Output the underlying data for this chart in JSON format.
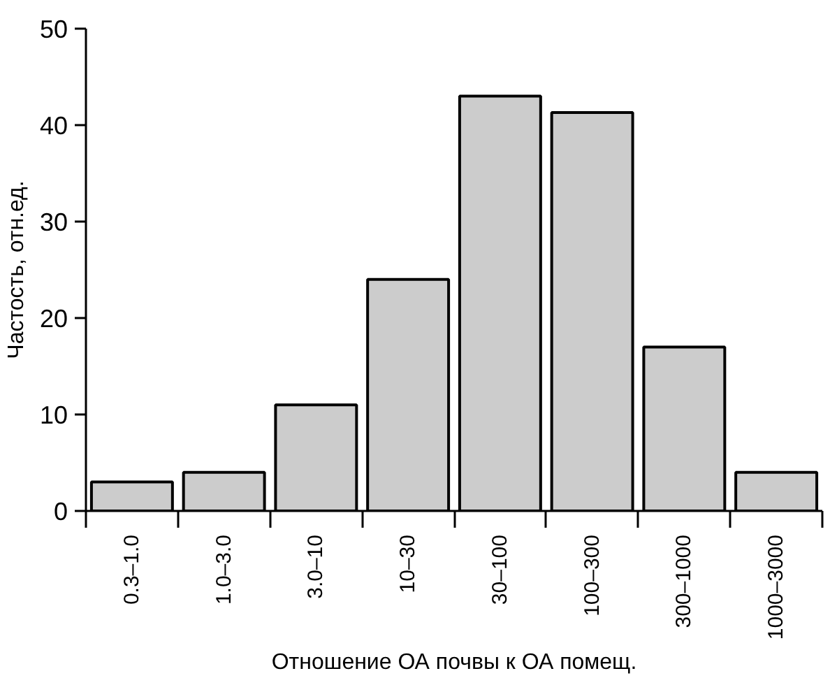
{
  "chart_data": {
    "type": "bar",
    "xlabel": "Отношение ОА почвы к ОА помещ.",
    "ylabel": "Частость, отн.ед.",
    "categories": [
      "0.3–1.0",
      "1.0–3.0",
      "3.0–10",
      "10–30",
      "30–100",
      "100–300",
      "300–1000",
      "1000–3000"
    ],
    "values": [
      3,
      4,
      11,
      24,
      43,
      41.3,
      17,
      4
    ],
    "color": "#cccccc",
    "ylim": [
      0,
      50
    ],
    "yticks": [
      0,
      10,
      20,
      30,
      40,
      50
    ],
    "grid": false
  }
}
